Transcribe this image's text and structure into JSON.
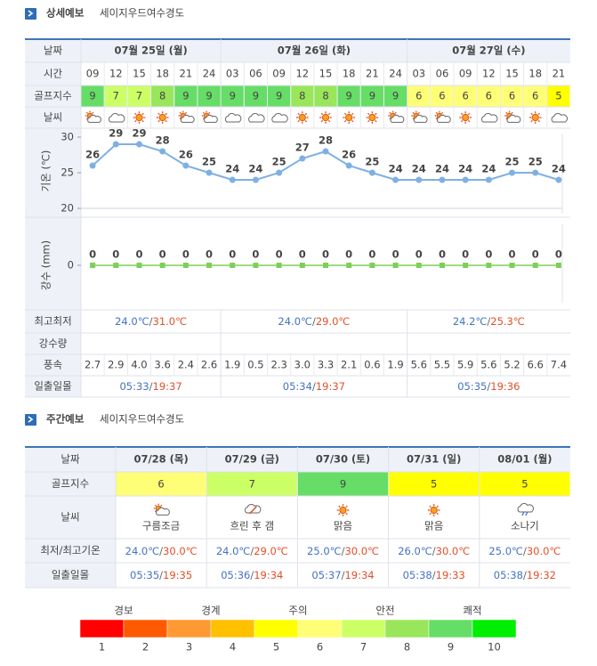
{
  "detail": {
    "title": "상세예보",
    "location": "세이지우드여수경도",
    "row_labels": {
      "date": "날짜",
      "time": "시간",
      "golf": "골프지수",
      "weather": "날씨",
      "minmax": "최고최저",
      "rain": "강수량",
      "wind": "풍속",
      "sun": "일출일몰"
    },
    "days": [
      {
        "date": "07월 25일 (월)",
        "times": [
          "09",
          "12",
          "15",
          "18",
          "21",
          "24"
        ],
        "golf": [
          9,
          7,
          7,
          8,
          9,
          9
        ],
        "temperature": [
          26,
          29,
          29,
          28,
          26,
          25
        ],
        "precipitation": [
          0,
          0,
          0,
          0,
          0,
          0
        ],
        "wind": [
          "2.7",
          "2.9",
          "4.0",
          "3.6",
          "2.4",
          "2.6"
        ],
        "minmax": [
          "24.0℃",
          "/",
          "31.0℃"
        ],
        "sun": [
          "05:33",
          "/",
          "19:37"
        ]
      },
      {
        "date": "07월 26일 (화)",
        "times": [
          "03",
          "06",
          "09",
          "12",
          "15",
          "18",
          "21",
          "24"
        ],
        "golf": [
          9,
          9,
          9,
          8,
          8,
          9,
          9,
          9
        ],
        "temperature": [
          24,
          24,
          25,
          27,
          28,
          26,
          25,
          24
        ],
        "precipitation": [
          0,
          0,
          0,
          0,
          0,
          0,
          0,
          0
        ],
        "wind": [
          "1.9",
          "0.5",
          "2.3",
          "3.0",
          "3.3",
          "2.1",
          "0.6",
          "1.9"
        ],
        "minmax": [
          "24.0℃",
          "/",
          "29.0℃"
        ],
        "sun": [
          "05:34",
          "/",
          "19:37"
        ]
      },
      {
        "date": "07월 27일 (수)",
        "times": [
          "03",
          "06",
          "09",
          "12",
          "15",
          "18",
          "21"
        ],
        "golf": [
          6,
          6,
          6,
          6,
          6,
          6,
          5
        ],
        "temperature": [
          24,
          24,
          24,
          24,
          25,
          25,
          24
        ],
        "precipitation": [
          0,
          0,
          0,
          0,
          0,
          0,
          0
        ],
        "wind": [
          "5.6",
          "5.5",
          "5.9",
          "5.6",
          "5.2",
          "6.6",
          "7.4"
        ],
        "minmax": [
          "24.2℃",
          "/",
          "25.3℃"
        ],
        "sun": [
          "05:35",
          "/",
          "19:36"
        ]
      }
    ],
    "temperature_chart": {
      "type": "line",
      "axis_label": "기온 (℃)",
      "ylim": [
        20,
        30
      ],
      "yticks": [
        20,
        25,
        30
      ],
      "color": "#7fb0e4"
    },
    "precipitation_chart": {
      "type": "line",
      "axis_label": "강수 (mm)",
      "ylim": [
        -1,
        1
      ],
      "yticks": [
        0
      ],
      "color": "#9fdc80"
    }
  },
  "weekly": {
    "title": "주간예보",
    "location": "세이지우드여수경도",
    "row_labels": {
      "date": "날짜",
      "golf": "골프지수",
      "weather": "날씨",
      "temp": "최저/최고기온",
      "sun": "일출일몰"
    },
    "days": [
      {
        "date": "07/28 (목)",
        "golf": 6,
        "weather": "구름조금",
        "temp": [
          "24.0℃",
          "/",
          "30.0℃"
        ],
        "sun": [
          "05:35",
          "/",
          "19:35"
        ]
      },
      {
        "date": "07/29 (금)",
        "golf": 7,
        "weather": "흐린 후 갬",
        "temp": [
          "24.0℃",
          "/",
          "29.0℃"
        ],
        "sun": [
          "05:36",
          "/",
          "19:34"
        ]
      },
      {
        "date": "07/30 (토)",
        "golf": 9,
        "weather": "맑음",
        "temp": [
          "25.0℃",
          "/",
          "30.0℃"
        ],
        "sun": [
          "05:37",
          "/",
          "19:34"
        ]
      },
      {
        "date": "07/31 (일)",
        "golf": 5,
        "weather": "맑음",
        "temp": [
          "26.0℃",
          "/",
          "30.0℃"
        ],
        "sun": [
          "05:38",
          "/",
          "19:33"
        ]
      },
      {
        "date": "08/01 (월)",
        "golf": 5,
        "weather": "소나기",
        "temp": [
          "25.0℃",
          "/",
          "30.0℃"
        ],
        "sun": [
          "05:38",
          "/",
          "19:32"
        ]
      }
    ]
  },
  "legend": {
    "groups": [
      "경보",
      "경계",
      "주의",
      "안전",
      "쾌적"
    ],
    "levels": [
      {
        "value": 1,
        "color": "#ff0000"
      },
      {
        "value": 2,
        "color": "#ff5a00"
      },
      {
        "value": 3,
        "color": "#ff9933"
      },
      {
        "value": 4,
        "color": "#ffc000"
      },
      {
        "value": 5,
        "color": "#ffff00"
      },
      {
        "value": 6,
        "color": "#ffff77"
      },
      {
        "value": 7,
        "color": "#ccff66"
      },
      {
        "value": 8,
        "color": "#99e65a"
      },
      {
        "value": 9,
        "color": "#66dd66"
      },
      {
        "value": 10,
        "color": "#00ee00"
      }
    ]
  }
}
